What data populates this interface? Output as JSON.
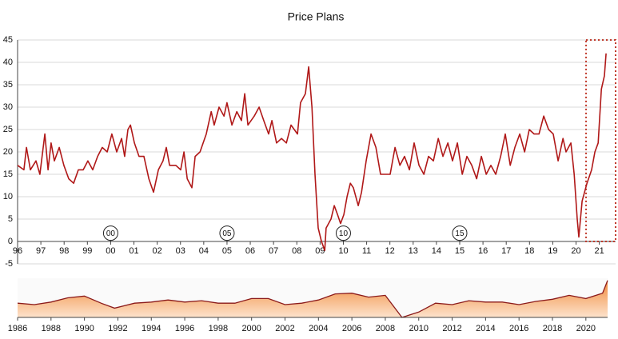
{
  "chart_data": [
    {
      "type": "line",
      "title": "Price Plans",
      "x": [
        1996.0,
        1996.27,
        1996.38,
        1996.55,
        1996.79,
        1996.96,
        1997.17,
        1997.31,
        1997.44,
        1997.58,
        1997.79,
        1997.99,
        1998.2,
        1998.41,
        1998.61,
        1998.82,
        1999.02,
        1999.23,
        1999.44,
        1999.64,
        1999.85,
        2000.05,
        2000.26,
        2000.47,
        2000.6,
        2000.74,
        2000.85,
        2001.02,
        2001.22,
        2001.43,
        2001.64,
        2001.84,
        2002.05,
        2002.25,
        2002.39,
        2002.53,
        2002.8,
        2003.01,
        2003.15,
        2003.29,
        2003.49,
        2003.63,
        2003.84,
        2004.11,
        2004.32,
        2004.45,
        2004.66,
        2004.87,
        2005.0,
        2005.21,
        2005.42,
        2005.62,
        2005.76,
        2005.9,
        2006.17,
        2006.38,
        2006.58,
        2006.79,
        2006.93,
        2007.13,
        2007.34,
        2007.55,
        2007.75,
        2008.03,
        2008.16,
        2008.37,
        2008.51,
        2008.65,
        2008.78,
        2008.92,
        2009.06,
        2009.2,
        2009.26,
        2009.47,
        2009.61,
        2009.75,
        2009.88,
        2010.02,
        2010.16,
        2010.3,
        2010.43,
        2010.64,
        2010.78,
        2010.98,
        2011.19,
        2011.4,
        2011.6,
        2011.81,
        2012.01,
        2012.22,
        2012.43,
        2012.63,
        2012.84,
        2013.04,
        2013.25,
        2013.46,
        2013.66,
        2013.87,
        2014.08,
        2014.28,
        2014.49,
        2014.69,
        2014.9,
        2015.11,
        2015.31,
        2015.52,
        2015.73,
        2015.93,
        2016.14,
        2016.34,
        2016.55,
        2016.76,
        2016.96,
        2017.17,
        2017.37,
        2017.58,
        2017.79,
        2017.99,
        2018.2,
        2018.41,
        2018.61,
        2018.82,
        2019.02,
        2019.23,
        2019.44,
        2019.57,
        2019.78,
        2019.92,
        2020.05,
        2020.12,
        2020.26,
        2020.47,
        2020.67,
        2020.81,
        2020.95,
        2021.09,
        2021.22,
        2021.29
      ],
      "values": [
        17,
        16,
        21,
        16,
        18,
        15,
        24,
        16,
        22,
        18,
        21,
        17,
        14,
        13,
        16,
        16,
        18,
        16,
        19,
        21,
        20,
        24,
        20,
        23,
        19,
        25,
        26,
        22,
        19,
        19,
        14,
        11,
        16,
        18,
        21,
        17,
        17,
        16,
        20,
        14,
        12,
        19,
        20,
        24,
        29,
        26,
        30,
        28,
        31,
        26,
        29,
        27,
        33,
        26,
        28,
        30,
        27,
        24,
        27,
        22,
        23,
        22,
        26,
        24,
        31,
        33,
        39,
        30,
        15,
        3,
        0,
        -2,
        3,
        5,
        8,
        6,
        4,
        6,
        10,
        13,
        12,
        8,
        11,
        18,
        24,
        21,
        15,
        15,
        15,
        21,
        17,
        19,
        16,
        22,
        17,
        15,
        19,
        18,
        23,
        19,
        22,
        18,
        22,
        15,
        19,
        17,
        14,
        19,
        15,
        17,
        15,
        19,
        24,
        17,
        21,
        24,
        20,
        25,
        24,
        24,
        28,
        25,
        24,
        18,
        23,
        20,
        22,
        15,
        5,
        1,
        9,
        13,
        16,
        20,
        22,
        34,
        37,
        42
      ],
      "color": "#b01818",
      "xlim": [
        1996,
        2021.7
      ],
      "ylim": [
        -5,
        45
      ],
      "yticks": [
        -5,
        0,
        5,
        10,
        15,
        20,
        25,
        30,
        35,
        40,
        45
      ],
      "xticks": [
        {
          "value": 1996,
          "label": "96"
        },
        {
          "value": 1997,
          "label": "97"
        },
        {
          "value": 1998,
          "label": "98"
        },
        {
          "value": 1999,
          "label": "99"
        },
        {
          "value": 2000,
          "label": "00"
        },
        {
          "value": 2001,
          "label": "01"
        },
        {
          "value": 2002,
          "label": "02"
        },
        {
          "value": 2003,
          "label": "03"
        },
        {
          "value": 2004,
          "label": "04"
        },
        {
          "value": 2005,
          "label": "05"
        },
        {
          "value": 2006,
          "label": "06"
        },
        {
          "value": 2007,
          "label": "07"
        },
        {
          "value": 2008,
          "label": "08"
        },
        {
          "value": 2009,
          "label": "09"
        },
        {
          "value": 2010,
          "label": "10"
        },
        {
          "value": 2011,
          "label": "11"
        },
        {
          "value": 2012,
          "label": "12"
        },
        {
          "value": 2013,
          "label": "13"
        },
        {
          "value": 2014,
          "label": "14"
        },
        {
          "value": 2015,
          "label": "15"
        },
        {
          "value": 2016,
          "label": "16"
        },
        {
          "value": 2017,
          "label": "17"
        },
        {
          "value": 2018,
          "label": "18"
        },
        {
          "value": 2019,
          "label": "19"
        },
        {
          "value": 2020,
          "label": "20"
        },
        {
          "value": 2021,
          "label": "21"
        }
      ],
      "grid": true,
      "annotations": [
        {
          "text": "00",
          "x": 2000,
          "y": 1.5
        },
        {
          "text": "05",
          "x": 2005,
          "y": 1.5
        },
        {
          "text": "10",
          "x": 2010,
          "y": 1.5
        },
        {
          "text": "15",
          "x": 2015,
          "y": 1.5
        }
      ],
      "highlight": {
        "xlim": [
          2020.43,
          2021.7
        ],
        "ylim": [
          0,
          45
        ],
        "color": "#c0392b"
      }
    },
    {
      "type": "area",
      "x": [
        1986,
        1987,
        1988,
        1989,
        1990,
        1991,
        1991.8,
        1993,
        1994,
        1995,
        1996,
        1997,
        1998,
        1999,
        2000,
        2001,
        2002,
        2003,
        2004,
        2005,
        2006,
        2007,
        2008,
        2009,
        2010,
        2011,
        2012,
        2013,
        2014,
        2015,
        2016,
        2017,
        2018,
        2019,
        2020,
        2021,
        2021.3
      ],
      "values": [
        4.0,
        3.6,
        4.3,
        5.5,
        6.0,
        4.0,
        2.6,
        4.0,
        4.3,
        4.9,
        4.3,
        4.7,
        4.0,
        4.0,
        5.3,
        5.3,
        3.6,
        4.0,
        4.9,
        6.6,
        6.8,
        5.7,
        6.2,
        0,
        1.5,
        4.0,
        3.6,
        4.7,
        4.3,
        4.3,
        3.6,
        4.5,
        5.1,
        6.2,
        5.3,
        6.8,
        10.4
      ],
      "color": "#f4a261",
      "xlim": [
        1986,
        2021.3
      ],
      "ylim": [
        0,
        11
      ],
      "xticks": [
        1986,
        1988,
        1990,
        1992,
        1994,
        1996,
        1998,
        2000,
        2002,
        2004,
        2006,
        2008,
        2010,
        2012,
        2014,
        2016,
        2018,
        2020
      ]
    }
  ]
}
